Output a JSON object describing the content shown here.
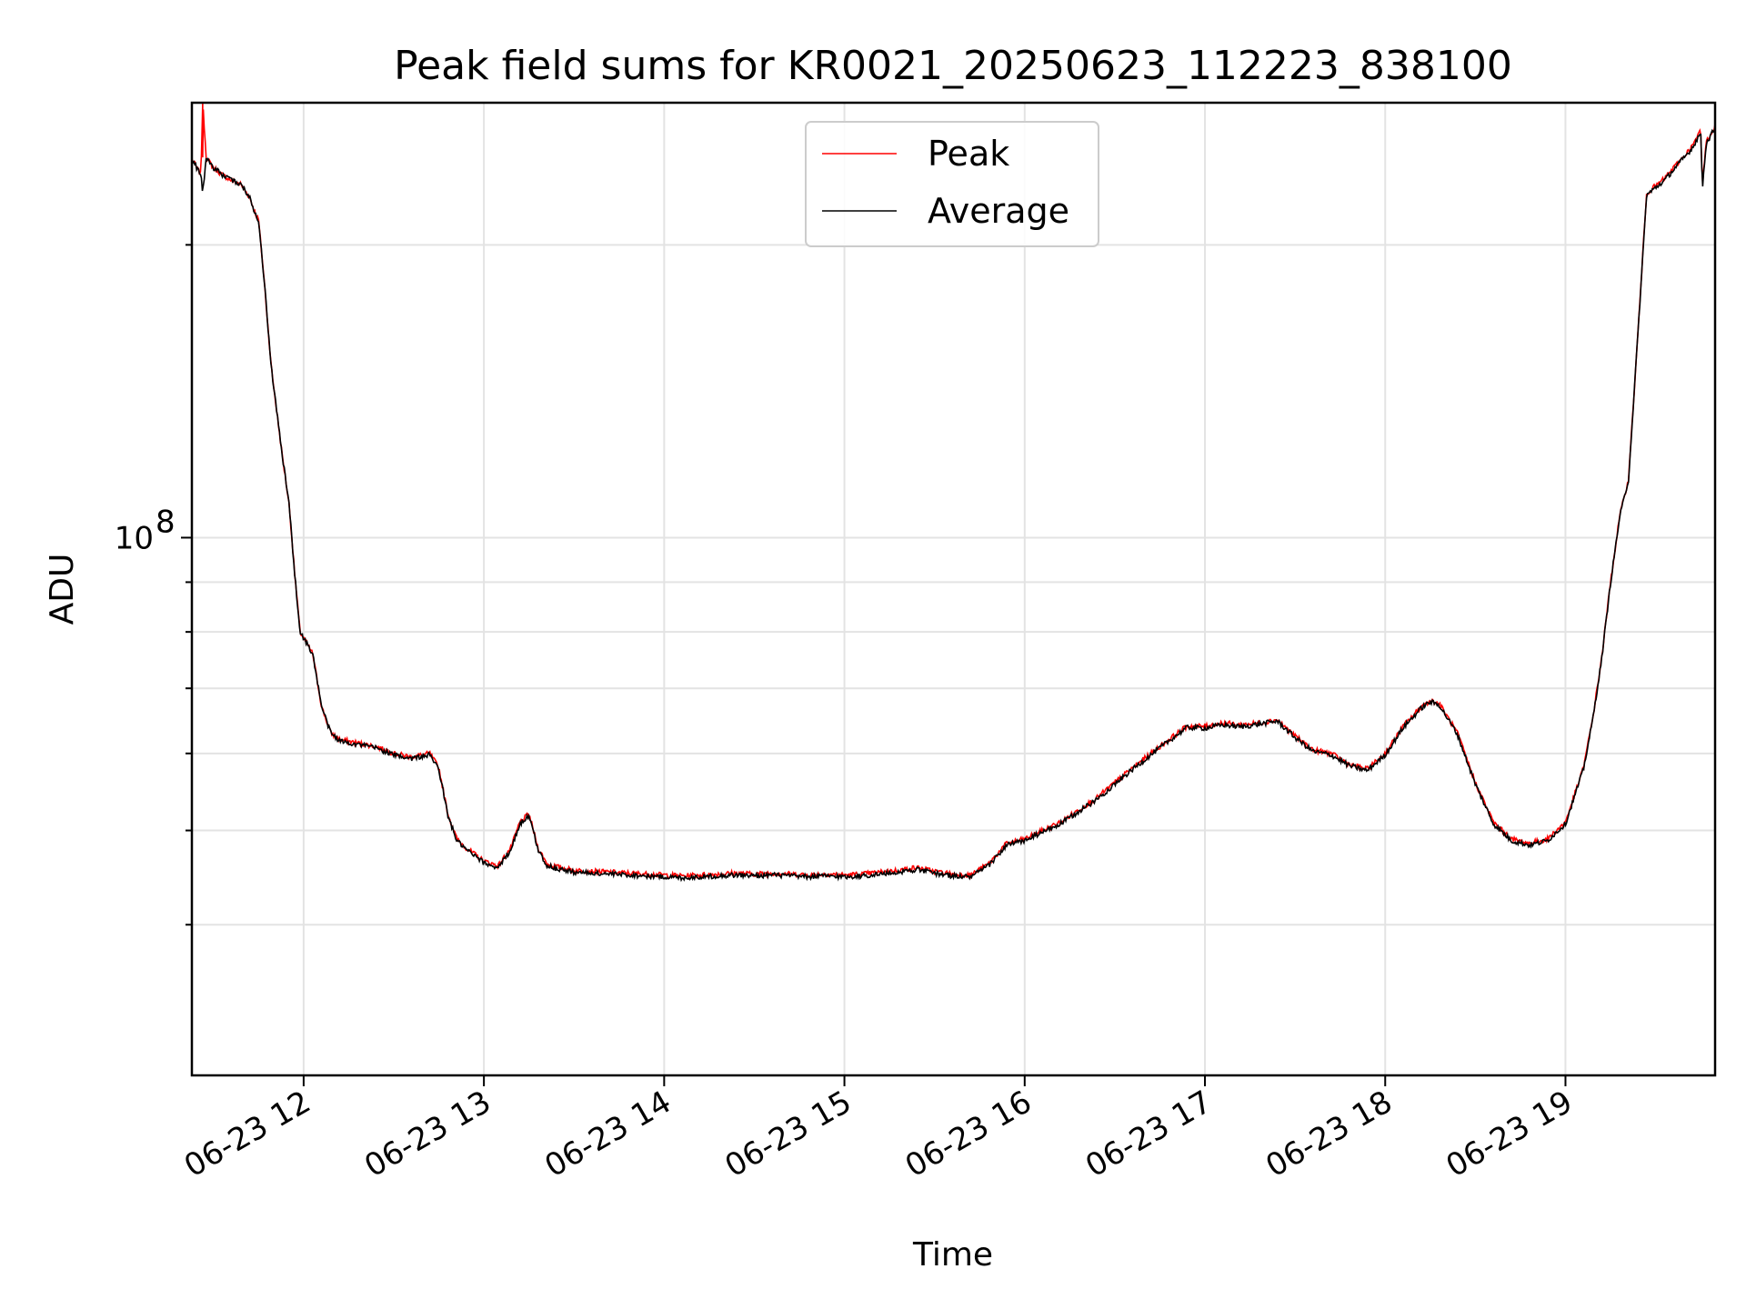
{
  "chart_data": {
    "type": "line",
    "title": "Peak field sums for KR0021_20250623_112223_838100",
    "xlabel": "Time",
    "ylabel": "ADU",
    "x_unit": "hours (2025-06-23, local)",
    "xlim": [
      11.38,
      19.83
    ],
    "ylim": [
      28000000,
      280000000
    ],
    "yscale": "log",
    "grid": true,
    "legend_position": "upper center",
    "x_ticks": [
      {
        "value": 12,
        "label": "06-23 12"
      },
      {
        "value": 13,
        "label": "06-23 13"
      },
      {
        "value": 14,
        "label": "06-23 14"
      },
      {
        "value": 15,
        "label": "06-23 15"
      },
      {
        "value": 16,
        "label": "06-23 16"
      },
      {
        "value": 17,
        "label": "06-23 17"
      },
      {
        "value": 18,
        "label": "06-23 18"
      },
      {
        "value": 19,
        "label": "06-23 19"
      }
    ],
    "y_major_ticks": [
      {
        "value": 100000000,
        "base": "10",
        "exponent": "8"
      }
    ],
    "y_minor_ticks": [
      40000000,
      50000000,
      60000000,
      70000000,
      80000000,
      90000000,
      200000000
    ],
    "series": [
      {
        "name": "Peak",
        "color": "#ff0000",
        "x": [
          11.38,
          11.43,
          11.44,
          11.46,
          11.5,
          11.55,
          11.6,
          11.65,
          11.7,
          11.73,
          11.75,
          11.78,
          11.82,
          11.88,
          11.92,
          11.95,
          11.98,
          12.05,
          12.1,
          12.15,
          12.2,
          12.3,
          12.4,
          12.5,
          12.6,
          12.7,
          12.75,
          12.8,
          12.85,
          12.9,
          13.0,
          13.08,
          13.15,
          13.2,
          13.25,
          13.3,
          13.35,
          13.4,
          13.5,
          13.6,
          13.7,
          13.8,
          13.9,
          14.0,
          14.1,
          14.2,
          14.3,
          14.4,
          14.5,
          14.6,
          14.7,
          14.8,
          14.9,
          15.0,
          15.1,
          15.2,
          15.3,
          15.4,
          15.5,
          15.6,
          15.7,
          15.8,
          15.9,
          16.0,
          16.1,
          16.2,
          16.3,
          16.4,
          16.5,
          16.6,
          16.7,
          16.8,
          16.9,
          17.0,
          17.1,
          17.2,
          17.3,
          17.4,
          17.5,
          17.6,
          17.7,
          17.8,
          17.9,
          18.0,
          18.1,
          18.2,
          18.25,
          18.3,
          18.4,
          18.5,
          18.6,
          18.7,
          18.8,
          18.9,
          19.0,
          19.1,
          19.15,
          19.2,
          19.25,
          19.3,
          19.35,
          19.4,
          19.45,
          19.5,
          19.55,
          19.6,
          19.7,
          19.75,
          19.76,
          19.78,
          19.83
        ],
        "y": [
          245000000,
          236000000,
          280000000,
          246000000,
          240000000,
          236000000,
          233000000,
          231000000,
          224000000,
          216000000,
          212000000,
          185000000,
          150000000,
          122000000,
          108000000,
          92000000,
          80000000,
          76000000,
          67000000,
          63000000,
          62000000,
          61500000,
          61000000,
          60000000,
          59500000,
          60000000,
          58000000,
          52000000,
          49000000,
          48000000,
          46500000,
          46000000,
          48000000,
          51000000,
          52000000,
          48000000,
          46200000,
          45900000,
          45500000,
          45400000,
          45300000,
          45200000,
          45100000,
          45000000,
          44900000,
          45000000,
          45100000,
          45200000,
          45100000,
          45200000,
          45100000,
          45000000,
          45100000,
          45000000,
          45100000,
          45300000,
          45500000,
          45800000,
          45400000,
          45100000,
          45000000,
          46200000,
          48500000,
          49000000,
          50000000,
          51000000,
          52500000,
          54000000,
          56000000,
          58000000,
          60000000,
          62000000,
          64000000,
          64000000,
          64500000,
          64200000,
          64500000,
          65000000,
          62500000,
          60500000,
          60000000,
          58500000,
          57800000,
          60000000,
          64000000,
          67000000,
          68000000,
          67500000,
          63000000,
          56000000,
          51000000,
          49000000,
          48500000,
          49000000,
          51000000,
          58000000,
          65000000,
          75000000,
          90000000,
          105000000,
          115000000,
          160000000,
          226000000,
          230000000,
          234000000,
          240000000,
          252000000,
          262000000,
          230000000,
          255000000,
          265000000
        ]
      },
      {
        "name": "Average",
        "color": "#000000",
        "x": [
          11.38,
          11.43,
          11.44,
          11.46,
          11.5,
          11.55,
          11.6,
          11.65,
          11.7,
          11.73,
          11.75,
          11.78,
          11.82,
          11.88,
          11.92,
          11.95,
          11.98,
          12.05,
          12.1,
          12.15,
          12.2,
          12.3,
          12.4,
          12.5,
          12.6,
          12.7,
          12.75,
          12.8,
          12.85,
          12.9,
          13.0,
          13.08,
          13.15,
          13.2,
          13.25,
          13.3,
          13.35,
          13.4,
          13.5,
          13.6,
          13.7,
          13.8,
          13.9,
          14.0,
          14.1,
          14.2,
          14.3,
          14.4,
          14.5,
          14.6,
          14.7,
          14.8,
          14.9,
          15.0,
          15.1,
          15.2,
          15.3,
          15.4,
          15.5,
          15.6,
          15.7,
          15.8,
          15.9,
          16.0,
          16.1,
          16.2,
          16.3,
          16.4,
          16.5,
          16.6,
          16.7,
          16.8,
          16.9,
          17.0,
          17.1,
          17.2,
          17.3,
          17.4,
          17.5,
          17.6,
          17.7,
          17.8,
          17.9,
          18.0,
          18.1,
          18.2,
          18.25,
          18.3,
          18.4,
          18.5,
          18.6,
          18.7,
          18.8,
          18.9,
          19.0,
          19.1,
          19.15,
          19.2,
          19.25,
          19.3,
          19.35,
          19.4,
          19.45,
          19.5,
          19.55,
          19.6,
          19.7,
          19.75,
          19.76,
          19.78,
          19.83
        ],
        "y": [
          245000000,
          236000000,
          226000000,
          246000000,
          240000000,
          236000000,
          233000000,
          231000000,
          224000000,
          216000000,
          212000000,
          185000000,
          150000000,
          122000000,
          108000000,
          92000000,
          80000000,
          76000000,
          67000000,
          63000000,
          61800000,
          61300000,
          60800000,
          59800000,
          59300000,
          59800000,
          57800000,
          51800000,
          48800000,
          47800000,
          46300000,
          45800000,
          47800000,
          50800000,
          51800000,
          47800000,
          46000000,
          45700000,
          45300000,
          45200000,
          45100000,
          45000000,
          44900000,
          44800000,
          44700000,
          44800000,
          44900000,
          45000000,
          44900000,
          45000000,
          44900000,
          44800000,
          44900000,
          44800000,
          44900000,
          45100000,
          45300000,
          45600000,
          45200000,
          44900000,
          44800000,
          46000000,
          48300000,
          48800000,
          49800000,
          50800000,
          52300000,
          53800000,
          55800000,
          57800000,
          59800000,
          61800000,
          63800000,
          63700000,
          64200000,
          63900000,
          64300000,
          64800000,
          62300000,
          60300000,
          59800000,
          58300000,
          57600000,
          59800000,
          63800000,
          66800000,
          67800000,
          67300000,
          62800000,
          55800000,
          50800000,
          48800000,
          48300000,
          48800000,
          50800000,
          57800000,
          64800000,
          74800000,
          89800000,
          104800000,
          114800000,
          159800000,
          225000000,
          229000000,
          233000000,
          239000000,
          251000000,
          261000000,
          229000000,
          254000000,
          264000000
        ]
      }
    ]
  }
}
